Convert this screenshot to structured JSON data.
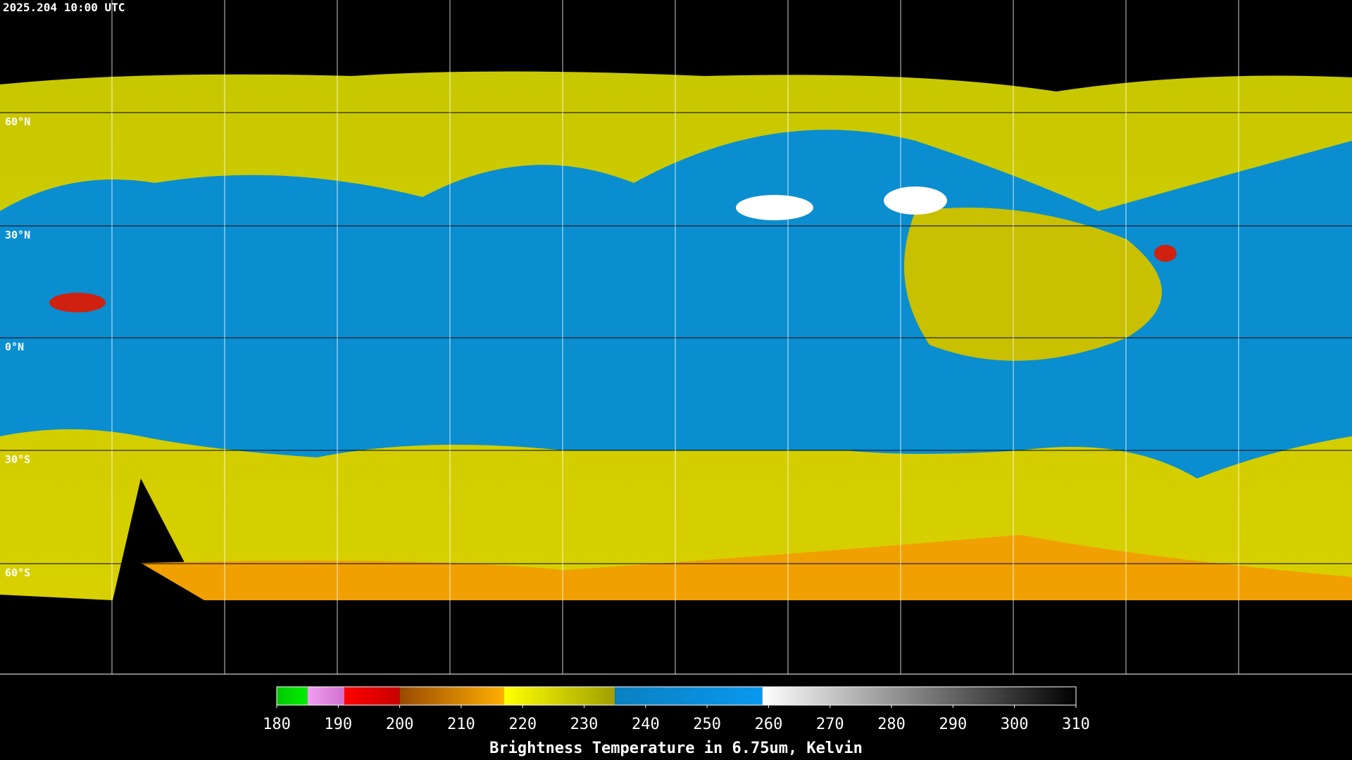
{
  "header": {
    "timestamp": "2025.204 10:00 UTC"
  },
  "map": {
    "lat_labels": [
      "60°N",
      "30°N",
      "0°N",
      "30°S",
      "60°S"
    ]
  },
  "colorbar": {
    "title": "Brightness Temperature in 6.75um, Kelvin",
    "range": [
      180,
      310
    ],
    "ticks": [
      180,
      190,
      200,
      210,
      220,
      230,
      240,
      250,
      260,
      270,
      280,
      290,
      300,
      310
    ],
    "segments": [
      {
        "from": 180,
        "to": 185,
        "colors": [
          "#00c800",
          "#00f000"
        ]
      },
      {
        "from": 185,
        "to": 191,
        "colors": [
          "#f0a0f0",
          "#d070d0"
        ]
      },
      {
        "from": 191,
        "to": 200,
        "colors": [
          "#ff0000",
          "#c80000"
        ]
      },
      {
        "from": 200,
        "to": 217,
        "colors": [
          "#9a4a00",
          "#ffb000"
        ]
      },
      {
        "from": 217,
        "to": 235,
        "colors": [
          "#ffff00",
          "#a0a000"
        ]
      },
      {
        "from": 235,
        "to": 259,
        "colors": [
          "#0a80c0",
          "#0a98f0"
        ]
      },
      {
        "from": 259,
        "to": 310,
        "colors": [
          "#ffffff",
          "#000000"
        ]
      }
    ]
  }
}
